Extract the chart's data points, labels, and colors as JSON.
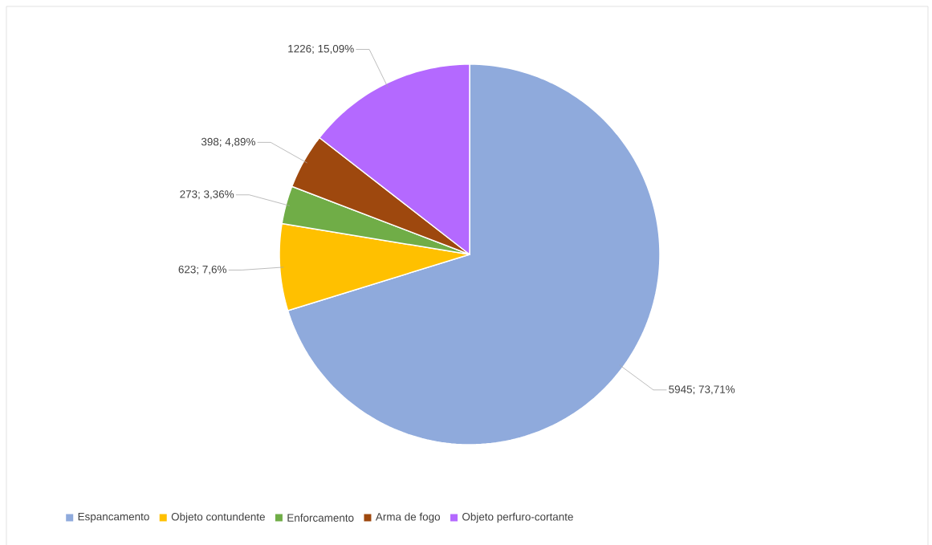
{
  "chart_data": {
    "type": "pie",
    "categories": [
      "Espancamento",
      "Objeto contundente",
      "Enforcamento",
      "Arma de fogo",
      "Objeto perfuro-cortante"
    ],
    "values": [
      5945,
      623,
      273,
      398,
      1226
    ],
    "colors": [
      "#8faadc",
      "#ffc000",
      "#70ad47",
      "#9e480e",
      "#b469ff"
    ],
    "value_labels": [
      "5945; 73,71%",
      "623; 7,6%",
      "273; 3,36%",
      "398; 4,89%",
      "1226; 15,09%"
    ],
    "legend": "bottom"
  }
}
